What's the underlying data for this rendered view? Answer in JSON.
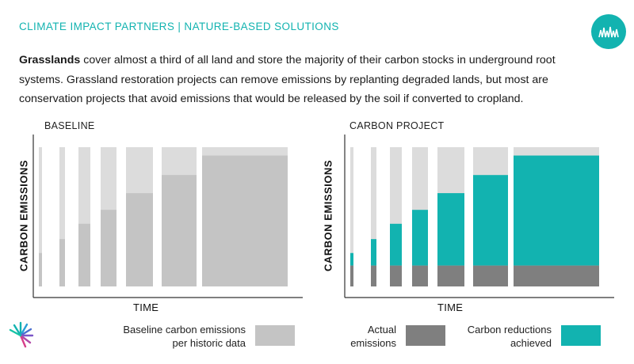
{
  "header": {
    "title": "CLIMATE IMPACT PARTNERS | NATURE-BASED SOLUTIONS"
  },
  "intro": {
    "bold": "Grasslands",
    "text": " cover almost a third of all land and store the majority of their carbon stocks in underground root systems. Grassland restoration projects can remove emissions by replanting degraded lands, but most are conservation projects that avoid emissions that would be released by the soil if converted to cropland."
  },
  "colors": {
    "accent": "#12b3b0",
    "baseline": "#c4c4c4",
    "baseline_light": "#dcdcdc",
    "actual": "#7f7f7f",
    "reduction": "#12b3b0"
  },
  "legend": {
    "baseline_label": "Baseline carbon emissions per historic data",
    "actual_label": "Actual emissions",
    "reduction_label": "Carbon reductions achieved"
  },
  "chart_data": [
    {
      "type": "bar",
      "title": "BASELINE",
      "xlabel": "TIME",
      "ylabel": "CARBON EMISSIONS",
      "ylim": [
        0,
        1
      ],
      "grid": false,
      "series": [
        {
          "name": "Baseline carbon emissions per historic data",
          "values": [
            0.24,
            0.34,
            0.45,
            0.55,
            0.67,
            0.8,
            0.94
          ]
        }
      ],
      "envelope": [
        1,
        1,
        1,
        1,
        1,
        1,
        1
      ]
    },
    {
      "type": "bar",
      "title": "CARBON PROJECT",
      "xlabel": "TIME",
      "ylabel": "CARBON EMISSIONS",
      "ylim": [
        0,
        1
      ],
      "grid": false,
      "series": [
        {
          "name": "Actual emissions",
          "values": [
            0.15,
            0.15,
            0.15,
            0.15,
            0.15,
            0.15,
            0.15
          ]
        },
        {
          "name": "Carbon reductions achieved",
          "values": [
            0.09,
            0.19,
            0.3,
            0.4,
            0.52,
            0.65,
            0.79
          ]
        }
      ],
      "envelope": [
        1,
        1,
        1,
        1,
        1,
        1,
        1
      ]
    }
  ]
}
